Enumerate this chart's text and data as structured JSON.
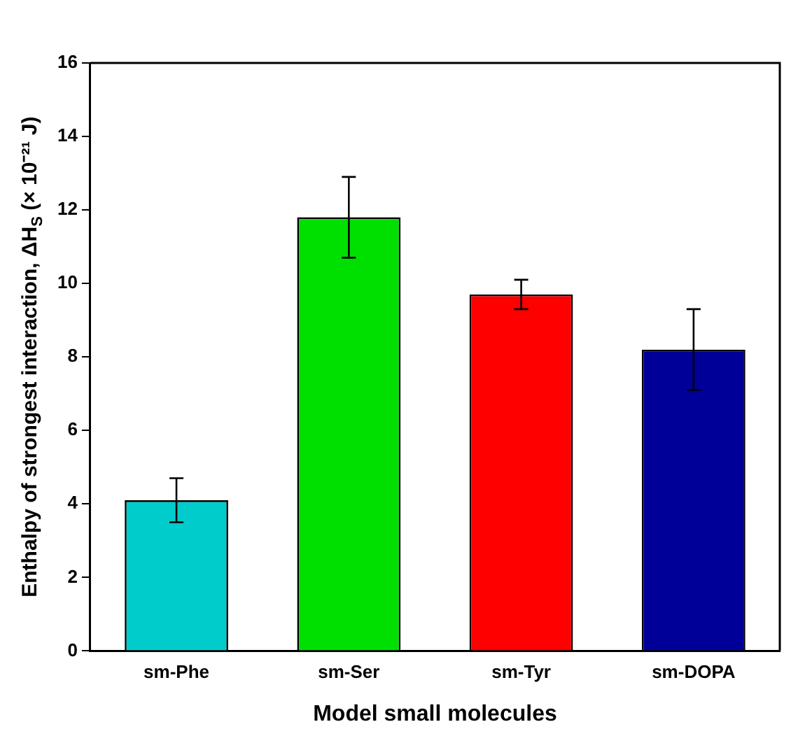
{
  "chart_data": {
    "type": "bar",
    "xlabel": "Model small molecules",
    "ylabel": "Enthalpy of strongest interaction, ΔH$_{S}$ (× 10⁻²¹ J)",
    "categories": [
      "sm-Phe",
      "sm-Ser",
      "sm-Tyr",
      "sm-DOPA"
    ],
    "values": [
      4.1,
      11.8,
      9.7,
      8.2
    ],
    "colors": [
      "#00cccc",
      "#00e000",
      "#ff0000",
      "#000099"
    ],
    "errors": [
      0.6,
      1.1,
      0.4,
      1.1
    ],
    "ylim": [
      0,
      16
    ],
    "yticks": [
      0,
      2,
      4,
      6,
      8,
      10,
      12,
      14,
      16
    ],
    "grid": false,
    "legend": false
  }
}
